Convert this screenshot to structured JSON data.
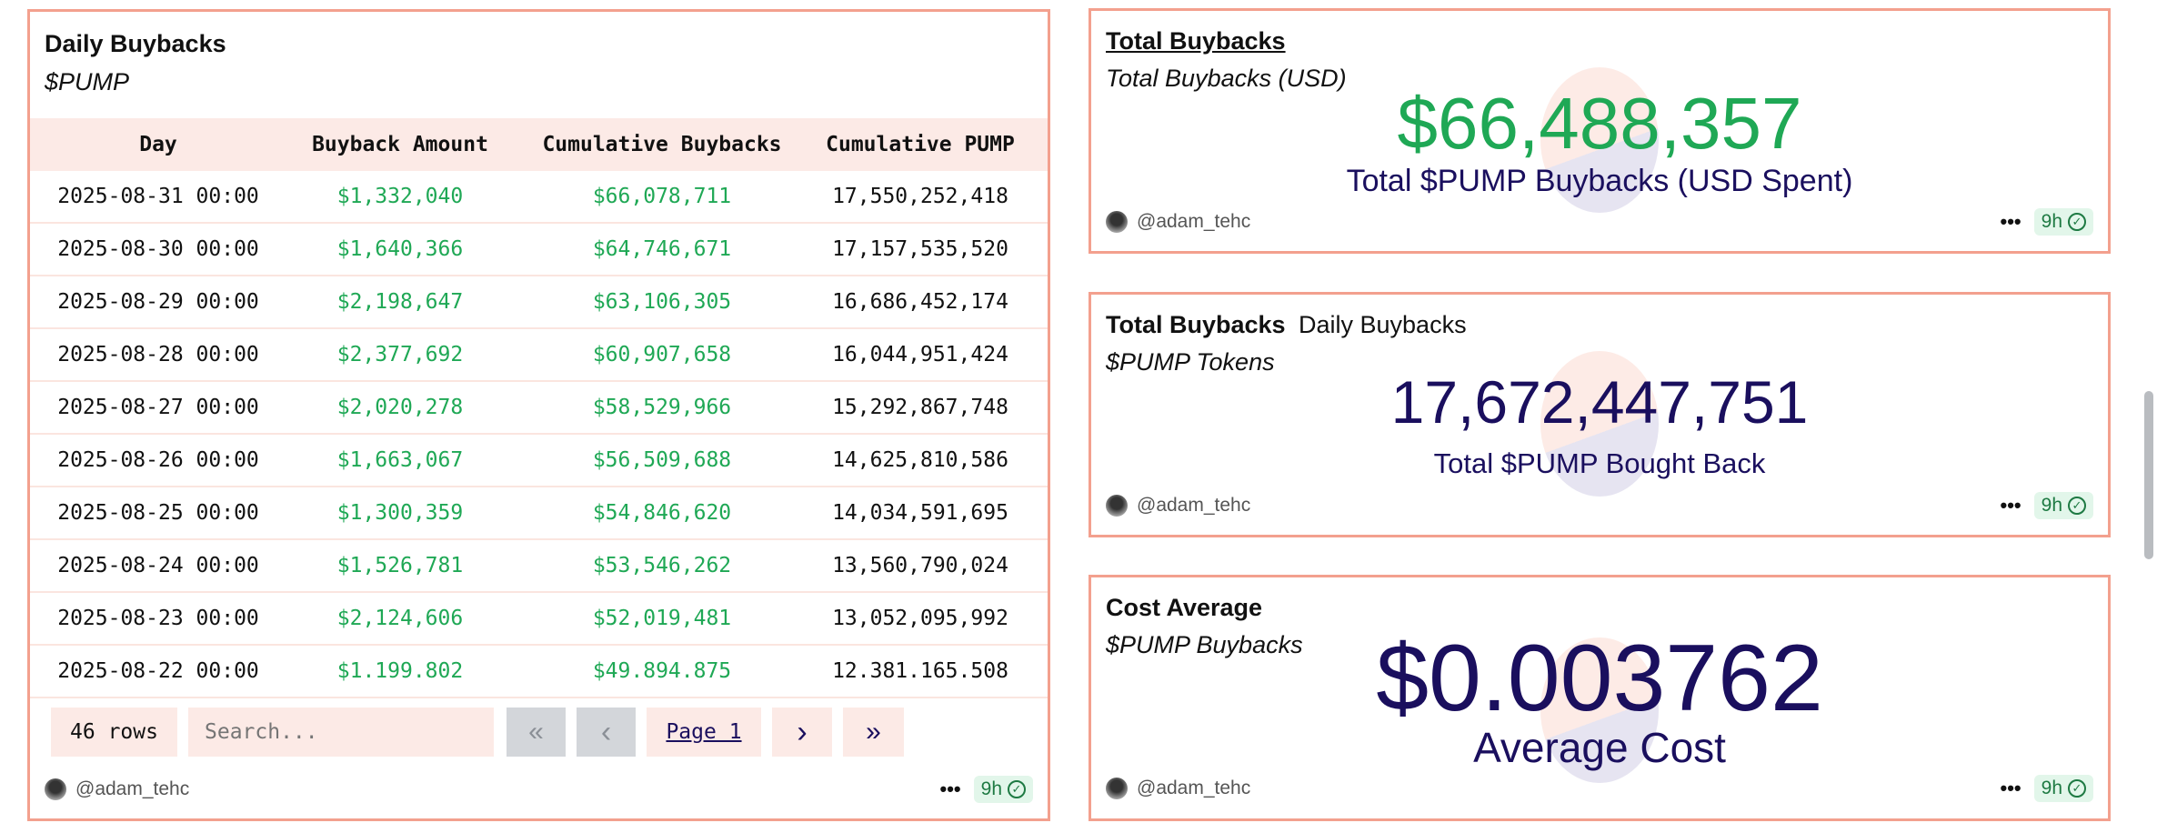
{
  "daily": {
    "title": "Daily Buybacks",
    "subtitle": "$PUMP",
    "columns": [
      "Day",
      "Buyback Amount",
      "Cumulative Buybacks",
      "Cumulative PUMP"
    ],
    "rows": [
      [
        "2025-08-31 00:00",
        "$1,332,040",
        "$66,078,711",
        "17,550,252,418"
      ],
      [
        "2025-08-30 00:00",
        "$1,640,366",
        "$64,746,671",
        "17,157,535,520"
      ],
      [
        "2025-08-29 00:00",
        "$2,198,647",
        "$63,106,305",
        "16,686,452,174"
      ],
      [
        "2025-08-28 00:00",
        "$2,377,692",
        "$60,907,658",
        "16,044,951,424"
      ],
      [
        "2025-08-27 00:00",
        "$2,020,278",
        "$58,529,966",
        "15,292,867,748"
      ],
      [
        "2025-08-26 00:00",
        "$1,663,067",
        "$56,509,688",
        "14,625,810,586"
      ],
      [
        "2025-08-25 00:00",
        "$1,300,359",
        "$54,846,620",
        "14,034,591,695"
      ],
      [
        "2025-08-24 00:00",
        "$1,526,781",
        "$53,546,262",
        "13,560,790,024"
      ],
      [
        "2025-08-23 00:00",
        "$2,124,606",
        "$52,019,481",
        "13,052,095,992"
      ],
      [
        "2025-08-22 00:00",
        "$1.199.802",
        "$49.894.875",
        "12.381.165.508"
      ]
    ],
    "row_count": "46 rows",
    "search_placeholder": "Search...",
    "page_label": "Page 1",
    "first": "«",
    "prev": "‹",
    "next": "›",
    "last": "»"
  },
  "total_usd": {
    "title": "Total Buybacks",
    "subtitle": "Total Buybacks (USD)",
    "value": "$66,488,357",
    "label": "Total $PUMP Buybacks (USD Spent)"
  },
  "total_tokens": {
    "title": "Total Buybacks",
    "tab2": "Daily Buybacks",
    "subtitle": "$PUMP Tokens",
    "value": "17,672,447,751",
    "label": "Total $PUMP Bought Back"
  },
  "cost_avg": {
    "title": "Cost Average",
    "subtitle": "$PUMP Buybacks",
    "value": "$0.003762",
    "label": "Average Cost"
  },
  "footer": {
    "author": "@adam_tehc",
    "more": "•••",
    "age": "9h"
  },
  "colors": {
    "border": "#f3a08e",
    "green": "#1fa855",
    "navy": "#1a0f5e",
    "header_bg": "#fceae6"
  }
}
